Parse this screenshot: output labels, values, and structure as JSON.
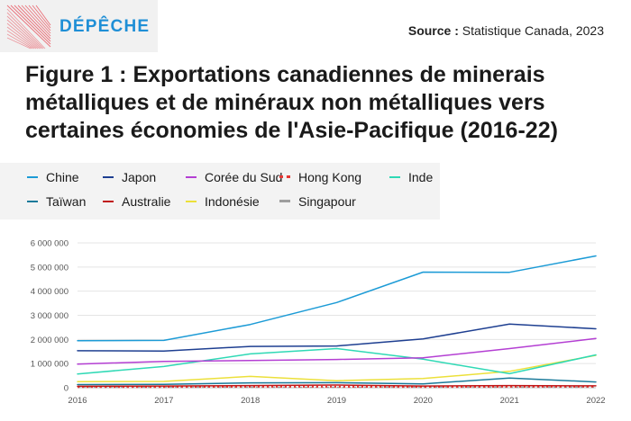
{
  "brand": {
    "logo_text": "DÉPÊCHE",
    "logo_color": "#1f8fd6",
    "logo_mark_color": "#e8505b"
  },
  "source": {
    "label": "Source :",
    "text": "Statistique Canada, 2023"
  },
  "title": "Figure 1 : Exportations canadiennes de minerais métalliques et de minéraux non métalliques vers certaines économies de l'Asie-Pacifique (2016-22)",
  "chart_data": {
    "type": "line",
    "title": "Figure 1 : Exportations canadiennes de minerais métalliques et de minéraux non métalliques vers certaines économies de l'Asie-Pacifique (2016-22)",
    "xlabel": "",
    "ylabel": "",
    "x": [
      2016,
      2017,
      2018,
      2019,
      2020,
      2021,
      2022
    ],
    "x_tick_labels": [
      "2016",
      "2017",
      "2018",
      "2019",
      "2020",
      "2021",
      "2022"
    ],
    "ylim": [
      0,
      6000000
    ],
    "y_ticks": [
      0,
      1000000,
      2000000,
      3000000,
      4000000,
      5000000,
      6000000
    ],
    "y_tick_labels": [
      "0",
      "1 000 000",
      "2 000 000",
      "3 000 000",
      "4 000 000",
      "5 000 000",
      "6 000 000"
    ],
    "grid": "horizontal",
    "legend_position": "top-left",
    "series": [
      {
        "name": "Chine",
        "color": "#1c9bd6",
        "dash": "solid",
        "values": [
          1950000,
          1960000,
          2620000,
          3530000,
          4790000,
          4780000,
          5460000
        ]
      },
      {
        "name": "Japon",
        "color": "#1e3f91",
        "dash": "solid",
        "values": [
          1530000,
          1520000,
          1710000,
          1730000,
          2020000,
          2640000,
          2440000
        ]
      },
      {
        "name": "Corée du Sud",
        "color": "#b43fd3",
        "dash": "solid",
        "values": [
          980000,
          1090000,
          1130000,
          1170000,
          1240000,
          1620000,
          2040000
        ]
      },
      {
        "name": "Hong Kong",
        "color": "#e53935",
        "dash": "dotted",
        "values": [
          30000,
          30000,
          40000,
          40000,
          30000,
          40000,
          40000
        ]
      },
      {
        "name": "Inde",
        "color": "#2fd9b5",
        "dash": "solid",
        "values": [
          570000,
          880000,
          1400000,
          1620000,
          1180000,
          580000,
          1360000
        ]
      },
      {
        "name": "Taïwan",
        "color": "#1a7a9a",
        "dash": "solid",
        "values": [
          130000,
          140000,
          200000,
          210000,
          160000,
          400000,
          240000
        ]
      },
      {
        "name": "Australie",
        "color": "#c01818",
        "dash": "solid",
        "values": [
          60000,
          70000,
          90000,
          110000,
          70000,
          90000,
          80000
        ]
      },
      {
        "name": "Indonésie",
        "color": "#ece03a",
        "dash": "solid",
        "values": [
          250000,
          260000,
          470000,
          290000,
          380000,
          680000,
          1340000
        ]
      },
      {
        "name": "Singapour",
        "color": "#9e9e9e",
        "dash": "dashed",
        "values": [
          20000,
          20000,
          20000,
          20000,
          20000,
          20000,
          20000
        ]
      }
    ]
  }
}
